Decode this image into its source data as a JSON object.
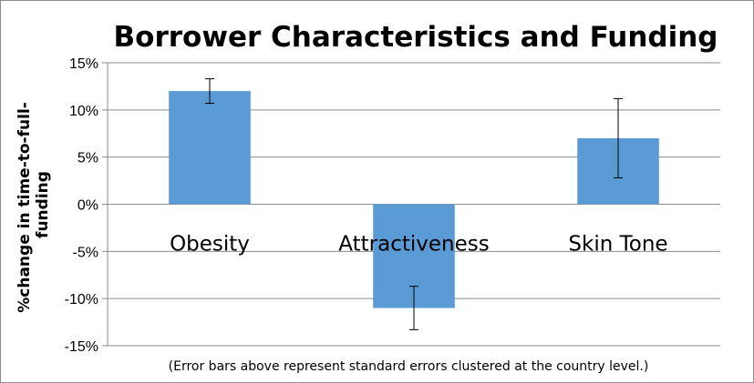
{
  "chart_data": {
    "type": "bar",
    "title": "Borrower Characteristics and Funding",
    "ylabel": [
      "%change in time-to-full-",
      "funding"
    ],
    "xlabel": "",
    "categories": [
      "Obesity",
      "Attractiveness",
      "Skin Tone"
    ],
    "values": [
      12,
      -11,
      7
    ],
    "errors": [
      1.3,
      2.3,
      4.2
    ],
    "ylim": [
      -15,
      15
    ],
    "yticks": [
      15,
      10,
      5,
      0,
      -5,
      -10,
      -15
    ],
    "ytick_labels": [
      "15%",
      "10%",
      "5%",
      "0%",
      "-5%",
      "-10%",
      "-15%"
    ],
    "grid": true,
    "legend": "none",
    "bar_color": "#5b9bd5",
    "note": "(Error bars above represent standard errors clustered at the country level.)"
  }
}
